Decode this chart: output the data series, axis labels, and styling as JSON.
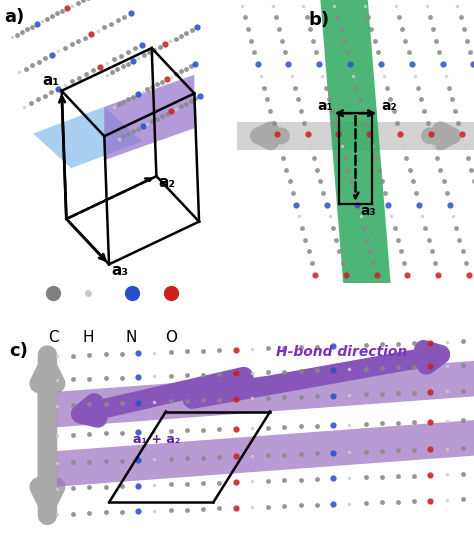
{
  "fig_width": 4.74,
  "fig_height": 5.34,
  "dpi": 100,
  "bg_color": "#ffffff",
  "panel_a_label": "a)",
  "panel_b_label": "b)",
  "panel_c_label": "c)",
  "legend_atoms": [
    "C",
    "H",
    "N",
    "O"
  ],
  "legend_colors": [
    "#808080",
    "#c8c8c8",
    "#2b4fcc",
    "#cc2020"
  ],
  "legend_sizes": [
    11,
    5,
    11,
    11
  ],
  "blue_plane_color": "#7ab4e8",
  "purple_plane_color": "#9370cc",
  "green_band_color": "#2eaa5e",
  "purple_band_color": "#9b71c0",
  "gray_arrow_color": "#aaaaaa",
  "a1_label": "a₁",
  "a2_label": "a₂",
  "a3_label": "a₃",
  "a1_a2_label": "a₁ + a₂",
  "hbond_label": "H-bond direction",
  "atom_C": "#888888",
  "atom_H": "#cccccc",
  "atom_N": "#2b4fcc",
  "atom_O": "#cc2020"
}
